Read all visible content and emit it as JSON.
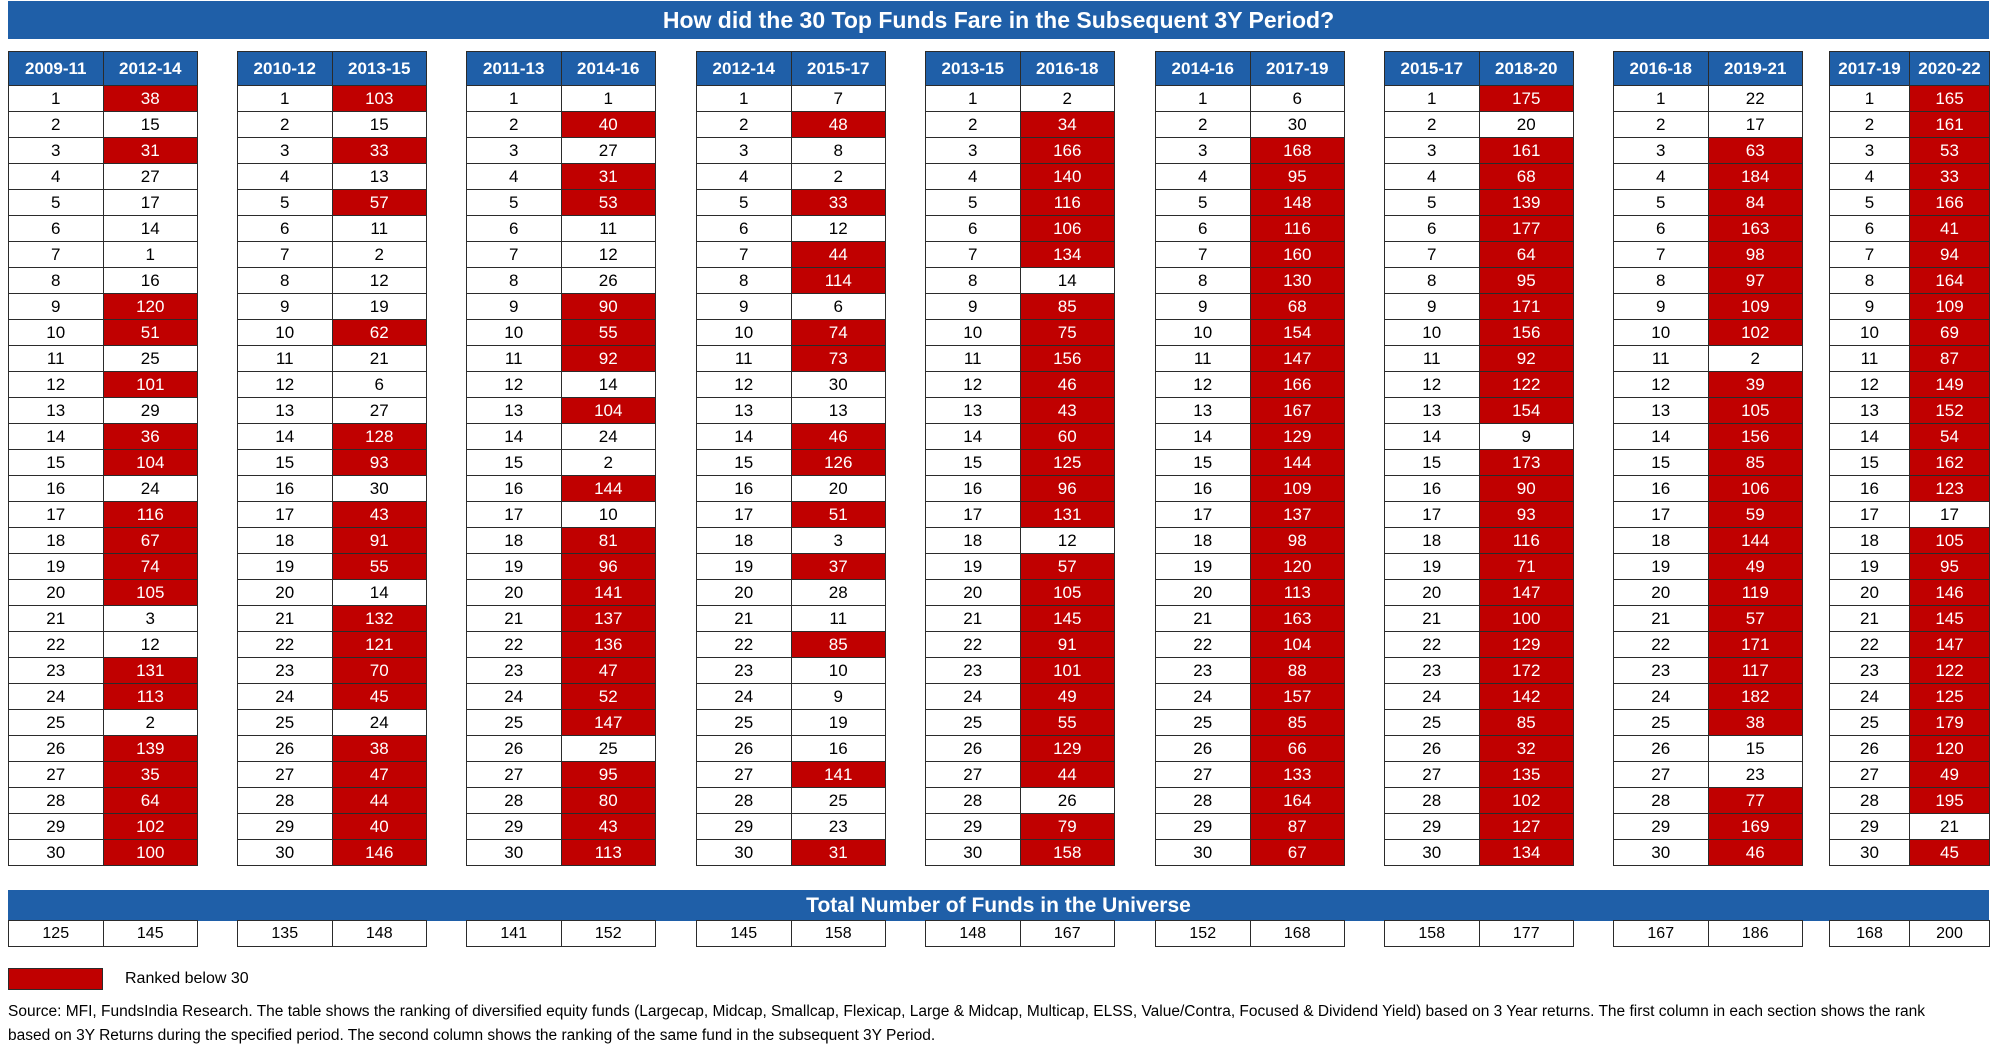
{
  "title": "How did the 30 Top Funds Fare in the Subsequent 3Y Period?",
  "universe_title": "Total Number of Funds in the Universe",
  "legend": {
    "label": "Ranked below 30",
    "color": "#c00000"
  },
  "source": "Source: MFI, FundsIndia Research. The table shows the ranking of diversified equity funds (Largecap, Midcap, Smallcap, Flexicap, Large & Midcap, Multicap, ELSS, Value/Contra, Focused & Dividend Yield) based on 3 Year returns. The first column in each section shows the rank based on 3Y Returns during the specified period. The second column shows the ranking of the same fund in the subsequent 3Y Period.",
  "colors": {
    "header": "#1f5fa8",
    "below30": "#c00000"
  },
  "chart_data": {
    "type": "table",
    "ranks": [
      1,
      2,
      3,
      4,
      5,
      6,
      7,
      8,
      9,
      10,
      11,
      12,
      13,
      14,
      15,
      16,
      17,
      18,
      19,
      20,
      21,
      22,
      23,
      24,
      25,
      26,
      27,
      28,
      29,
      30
    ],
    "sections": [
      {
        "period": "2009-11",
        "subsequent": "2012-14",
        "values": [
          38,
          15,
          31,
          27,
          17,
          14,
          1,
          16,
          120,
          51,
          25,
          101,
          29,
          36,
          104,
          24,
          116,
          67,
          74,
          105,
          3,
          12,
          131,
          113,
          2,
          139,
          35,
          64,
          102,
          100
        ],
        "universe": [
          125,
          145
        ]
      },
      {
        "period": "2010-12",
        "subsequent": "2013-15",
        "values": [
          103,
          15,
          33,
          13,
          57,
          11,
          2,
          12,
          19,
          62,
          21,
          6,
          27,
          128,
          93,
          30,
          43,
          91,
          55,
          14,
          132,
          121,
          70,
          45,
          24,
          38,
          47,
          44,
          40,
          146
        ],
        "universe": [
          135,
          148
        ]
      },
      {
        "period": "2011-13",
        "subsequent": "2014-16",
        "values": [
          1,
          40,
          27,
          31,
          53,
          11,
          12,
          26,
          90,
          55,
          92,
          14,
          104,
          24,
          2,
          144,
          10,
          81,
          96,
          141,
          137,
          136,
          47,
          52,
          147,
          25,
          95,
          80,
          43,
          113
        ],
        "universe": [
          141,
          152
        ]
      },
      {
        "period": "2012-14",
        "subsequent": "2015-17",
        "values": [
          7,
          48,
          8,
          2,
          33,
          12,
          44,
          114,
          6,
          74,
          73,
          30,
          13,
          46,
          126,
          20,
          51,
          3,
          37,
          28,
          11,
          85,
          10,
          9,
          19,
          16,
          141,
          25,
          23,
          31
        ],
        "universe": [
          145,
          158
        ]
      },
      {
        "period": "2013-15",
        "subsequent": "2016-18",
        "values": [
          2,
          34,
          166,
          140,
          116,
          106,
          134,
          14,
          85,
          75,
          156,
          46,
          43,
          60,
          125,
          96,
          131,
          12,
          57,
          105,
          145,
          91,
          101,
          49,
          55,
          129,
          44,
          26,
          79,
          158
        ],
        "universe": [
          148,
          167
        ]
      },
      {
        "period": "2014-16",
        "subsequent": "2017-19",
        "values": [
          6,
          30,
          168,
          95,
          148,
          116,
          160,
          130,
          68,
          154,
          147,
          166,
          167,
          129,
          144,
          109,
          137,
          98,
          120,
          113,
          163,
          104,
          88,
          157,
          85,
          66,
          133,
          164,
          87,
          67
        ],
        "universe": [
          152,
          168
        ]
      },
      {
        "period": "2015-17",
        "subsequent": "2018-20",
        "values": [
          175,
          20,
          161,
          68,
          139,
          177,
          64,
          95,
          171,
          156,
          92,
          122,
          154,
          9,
          173,
          90,
          93,
          116,
          71,
          147,
          100,
          129,
          172,
          142,
          85,
          32,
          135,
          102,
          127,
          134
        ],
        "universe": [
          158,
          177
        ]
      },
      {
        "period": "2016-18",
        "subsequent": "2019-21",
        "values": [
          22,
          17,
          63,
          184,
          84,
          163,
          98,
          97,
          109,
          102,
          2,
          39,
          105,
          156,
          85,
          106,
          59,
          144,
          49,
          119,
          57,
          171,
          117,
          182,
          38,
          15,
          23,
          77,
          169,
          46
        ],
        "universe": [
          167,
          186
        ]
      },
      {
        "period": "2017-19",
        "subsequent": "2020-22",
        "values": [
          165,
          161,
          53,
          33,
          166,
          41,
          94,
          164,
          109,
          69,
          87,
          149,
          152,
          54,
          162,
          123,
          17,
          105,
          95,
          146,
          145,
          147,
          122,
          125,
          179,
          120,
          49,
          195,
          21,
          45
        ],
        "universe": [
          168,
          200
        ]
      }
    ]
  }
}
